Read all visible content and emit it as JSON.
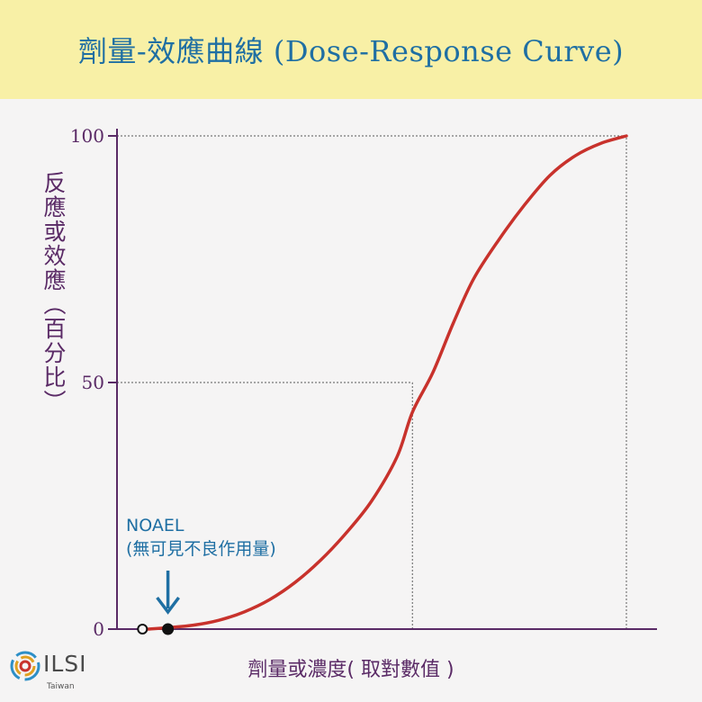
{
  "page": {
    "title": "劑量-效應曲線 (Dose-Response Curve)",
    "logo": {
      "name": "ILSI",
      "subtitle": "Taiwan"
    }
  },
  "chart_data": {
    "type": "line",
    "title": "劑量-效應曲線 (Dose-Response Curve)",
    "xlabel": "劑量或濃度( 取對數值 )",
    "ylabel": "反應或效應（百分比）",
    "ylim": [
      0,
      100
    ],
    "xlim": [
      0,
      100
    ],
    "yticks": [
      {
        "value": 0,
        "label": "0"
      },
      {
        "value": 50,
        "label": "50"
      },
      {
        "value": 100,
        "label": "100"
      }
    ],
    "series": [
      {
        "name": "dose-response",
        "color": "#c8322c",
        "x": [
          6,
          10,
          15,
          20,
          25,
          30,
          35,
          40,
          45,
          50,
          55,
          58,
          62,
          66,
          70,
          75,
          80,
          85,
          90,
          95,
          100
        ],
        "y": [
          0,
          0.3,
          0.8,
          1.8,
          3.5,
          6,
          9.5,
          14,
          19.5,
          26,
          35,
          44,
          52,
          62,
          71,
          79,
          86,
          92,
          96,
          98.5,
          100
        ]
      }
    ],
    "reference_lines": [
      {
        "axis": "y",
        "value": 50,
        "to_x": 58
      },
      {
        "axis": "y",
        "value": 100,
        "to_x": 100
      },
      {
        "axis": "x",
        "value": 58,
        "to_y": 50
      },
      {
        "axis": "x",
        "value": 100,
        "to_y": 100
      }
    ],
    "markers": [
      {
        "label": "open point",
        "x": 5,
        "y": 0,
        "style": "open"
      },
      {
        "label": "NOAEL",
        "x": 10,
        "y": 0,
        "style": "filled"
      }
    ],
    "annotations": [
      {
        "text_line1": "NOAEL",
        "text_line2": "(無可見不良作用量)",
        "x": 10,
        "y": 0,
        "arrow": true,
        "color": "#1f6fa3"
      }
    ]
  }
}
